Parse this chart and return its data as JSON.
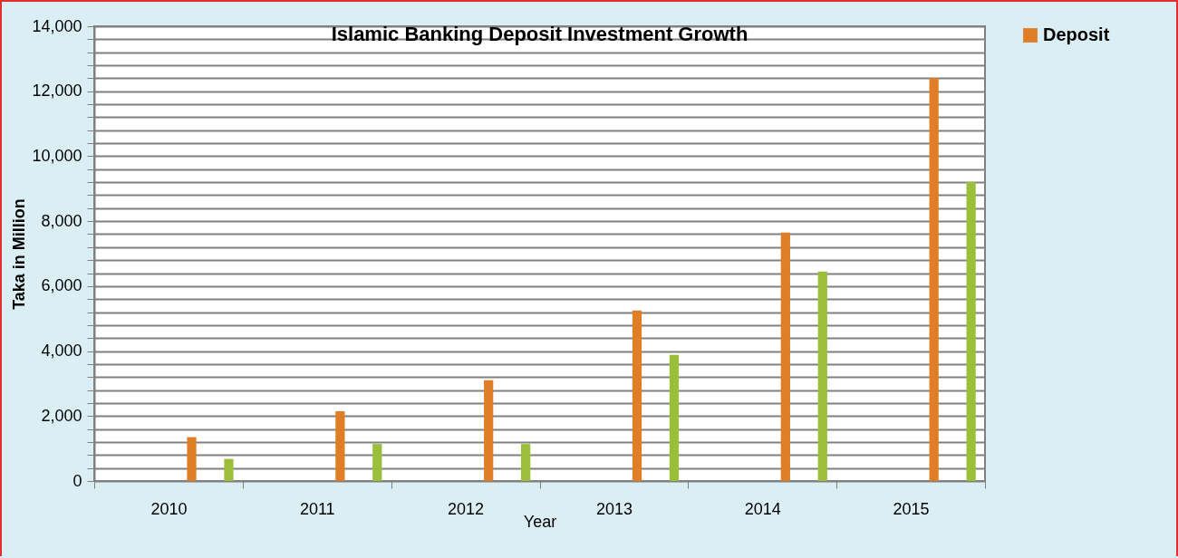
{
  "chart_data": {
    "type": "bar",
    "title": "Islamic Banking Deposit Investment Growth",
    "xlabel": "Year",
    "ylabel": "Taka in Million",
    "categories": [
      "2010",
      "2011",
      "2012",
      "2013",
      "2014",
      "2015"
    ],
    "series": [
      {
        "name": "Deposit",
        "color": "#e07d27",
        "values": [
          1350,
          2150,
          3100,
          5250,
          7650,
          12400
        ]
      },
      {
        "color": "#9bbf3b",
        "values": [
          680,
          1140,
          1140,
          3880,
          6450,
          9200
        ]
      }
    ],
    "ylim": [
      0,
      14000
    ],
    "yticks": [
      0,
      {
        "value": 400,
        "label": null
      },
      {
        "value": 800,
        "label": null
      },
      {
        "value": 1200,
        "label": null
      },
      {
        "value": 1600,
        "label": null
      },
      {
        "value": 2000,
        "label": "2,000"
      },
      {
        "value": 2400,
        "label": null
      },
      {
        "value": 2800,
        "label": null
      },
      {
        "value": 3200,
        "label": null
      },
      {
        "value": 3600,
        "label": null
      },
      {
        "value": 4000,
        "label": "4,000"
      },
      {
        "value": 4400,
        "label": null
      },
      {
        "value": 4800,
        "label": null
      },
      {
        "value": 5200,
        "label": null
      },
      {
        "value": 5600,
        "label": null
      },
      {
        "value": 6000,
        "label": "6,000"
      },
      {
        "value": 6400,
        "label": null
      },
      {
        "value": 6800,
        "label": null
      },
      {
        "value": 7200,
        "label": null
      },
      {
        "value": 7600,
        "label": null
      },
      {
        "value": 8000,
        "label": "8,000"
      },
      {
        "value": 8400,
        "label": null
      },
      {
        "value": 8800,
        "label": null
      },
      {
        "value": 9200,
        "label": null
      },
      {
        "value": 9600,
        "label": null
      },
      {
        "value": 10000,
        "label": "10,000"
      },
      {
        "value": 10400,
        "label": null
      },
      {
        "value": 10800,
        "label": null
      },
      {
        "value": 11200,
        "label": null
      },
      {
        "value": 11600,
        "label": null
      },
      {
        "value": 12000,
        "label": "12,000"
      },
      {
        "value": 12400,
        "label": null
      },
      {
        "value": 12800,
        "label": null
      },
      {
        "value": 13200,
        "label": null
      },
      {
        "value": 13600,
        "label": null
      },
      {
        "value": 14000,
        "label": "14,000"
      }
    ],
    "grid": "y",
    "legend": "right"
  }
}
